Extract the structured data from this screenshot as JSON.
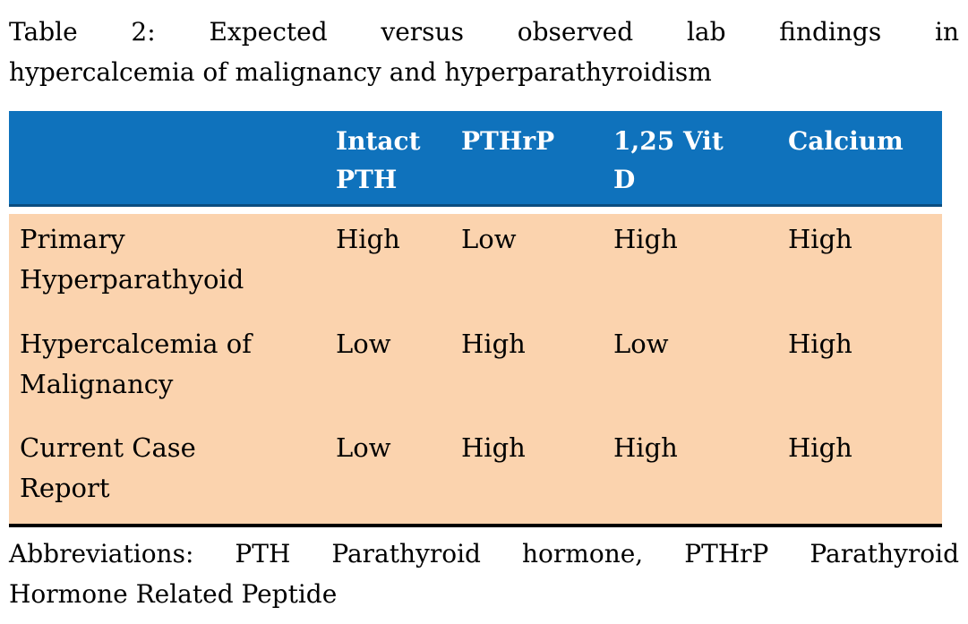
{
  "title": {
    "line1": "Table 2: Expected versus observed lab findings in",
    "line2": "hypercalcemia of malignancy and hyperparathyroidism"
  },
  "table": {
    "header": [
      {
        "label": "Intact PTH",
        "lines": [
          "Intact",
          "PTH"
        ]
      },
      {
        "label": "PTHrP",
        "lines": [
          "PTHrP"
        ]
      },
      {
        "label": "1,25 Vit D",
        "lines": [
          "1,25 Vit",
          "D"
        ]
      },
      {
        "label": "Calcium",
        "lines": [
          "Calcium"
        ]
      }
    ],
    "rows": [
      {
        "label": "Primary Hyperparathyoid",
        "label_lines": [
          "Primary",
          "Hyperparathyoid"
        ],
        "values": [
          "High",
          "Low",
          "High",
          "High"
        ]
      },
      {
        "label": "Hypercalcemia of Malignancy",
        "label_lines": [
          "Hypercalcemia of",
          "Malignancy"
        ],
        "values": [
          "Low",
          "High",
          "Low",
          "High"
        ]
      },
      {
        "label": "Current Case Report",
        "label_lines": [
          "Current Case",
          "Report"
        ],
        "values": [
          "Low",
          "High",
          "High",
          "High"
        ]
      }
    ]
  },
  "footer": {
    "line1": "Abbreviations: PTH Parathyroid hormone, PTHrP Parathyroid",
    "line2": "Hormone Related Peptide"
  },
  "colors": {
    "header_bg": "#0f72bc",
    "header_border": "#0b4d80",
    "header_text": "#ffffff",
    "body_bg": "#fbd3ae",
    "body_text": "#000000",
    "rule": "#000000"
  }
}
